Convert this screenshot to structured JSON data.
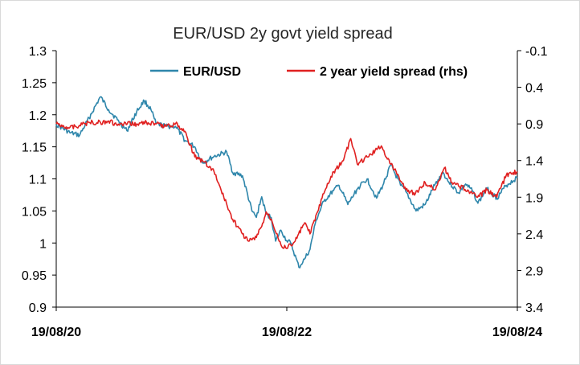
{
  "chart_data": {
    "type": "line",
    "title": "EUR/USD 2y govt yield spread",
    "x_tick_labels": [
      "19/08/20",
      "19/08/22",
      "19/08/24"
    ],
    "x_range": [
      "2020-08-19",
      "2024-08-19"
    ],
    "y_left": {
      "range": [
        0.9,
        1.3
      ],
      "ticks": [
        1.3,
        1.25,
        1.2,
        1.15,
        1.1,
        1.05,
        1,
        0.95,
        0.9
      ],
      "tick_labels": [
        "1.3",
        "1.25",
        "1.2",
        "1.15",
        "1.1",
        "1.05",
        "1",
        "0.95",
        "0.9"
      ]
    },
    "y_right": {
      "range": [
        -0.1,
        3.4
      ],
      "inverted": true,
      "ticks": [
        -0.1,
        0.4,
        0.9,
        1.4,
        1.9,
        2.4,
        2.9,
        3.4
      ],
      "tick_labels": [
        "-0.1",
        "0.4",
        "0.9",
        "1.4",
        "1.9",
        "2.4",
        "2.9",
        "3.4"
      ]
    },
    "grid": false,
    "legend_position": "top",
    "series": [
      {
        "name": "EUR/USD",
        "axis": "left",
        "color": "#2E86AB",
        "points": [
          [
            "2020-08-19",
            1.185
          ],
          [
            "2020-10-01",
            1.172
          ],
          [
            "2020-11-01",
            1.168
          ],
          [
            "2020-12-01",
            1.195
          ],
          [
            "2021-01-06",
            1.228
          ],
          [
            "2021-02-01",
            1.208
          ],
          [
            "2021-03-01",
            1.192
          ],
          [
            "2021-03-31",
            1.175
          ],
          [
            "2021-05-01",
            1.205
          ],
          [
            "2021-05-25",
            1.222
          ],
          [
            "2021-06-15",
            1.208
          ],
          [
            "2021-07-01",
            1.186
          ],
          [
            "2021-08-01",
            1.182
          ],
          [
            "2021-09-01",
            1.182
          ],
          [
            "2021-10-01",
            1.16
          ],
          [
            "2021-11-01",
            1.15
          ],
          [
            "2021-11-25",
            1.125
          ],
          [
            "2022-01-01",
            1.135
          ],
          [
            "2022-02-10",
            1.142
          ],
          [
            "2022-03-01",
            1.11
          ],
          [
            "2022-04-01",
            1.105
          ],
          [
            "2022-05-01",
            1.05
          ],
          [
            "2022-05-15",
            1.04
          ],
          [
            "2022-06-01",
            1.072
          ],
          [
            "2022-06-15",
            1.045
          ],
          [
            "2022-07-01",
            1.04
          ],
          [
            "2022-07-15",
            1.003
          ],
          [
            "2022-08-01",
            1.02
          ],
          [
            "2022-08-19",
            1.004
          ],
          [
            "2022-09-01",
            1.0
          ],
          [
            "2022-09-27",
            0.962
          ],
          [
            "2022-10-15",
            0.975
          ],
          [
            "2022-11-01",
            0.99
          ],
          [
            "2022-11-20",
            1.035
          ],
          [
            "2022-12-15",
            1.065
          ],
          [
            "2023-01-15",
            1.082
          ],
          [
            "2023-02-01",
            1.09
          ],
          [
            "2023-03-01",
            1.06
          ],
          [
            "2023-04-01",
            1.085
          ],
          [
            "2023-05-01",
            1.1
          ],
          [
            "2023-05-31",
            1.07
          ],
          [
            "2023-06-20",
            1.09
          ],
          [
            "2023-07-15",
            1.122
          ],
          [
            "2023-08-15",
            1.09
          ],
          [
            "2023-09-01",
            1.08
          ],
          [
            "2023-10-03",
            1.05
          ],
          [
            "2023-11-01",
            1.06
          ],
          [
            "2023-12-01",
            1.09
          ],
          [
            "2023-12-28",
            1.11
          ],
          [
            "2024-01-15",
            1.095
          ],
          [
            "2024-02-15",
            1.078
          ],
          [
            "2024-03-08",
            1.092
          ],
          [
            "2024-04-01",
            1.08
          ],
          [
            "2024-04-16",
            1.062
          ],
          [
            "2024-05-15",
            1.085
          ],
          [
            "2024-06-15",
            1.07
          ],
          [
            "2024-07-15",
            1.09
          ],
          [
            "2024-08-19",
            1.102
          ]
        ]
      },
      {
        "name": "2 year yield spread (rhs)",
        "axis": "right",
        "color": "#E02020",
        "points": [
          [
            "2020-08-19",
            0.9
          ],
          [
            "2020-10-01",
            0.95
          ],
          [
            "2020-11-01",
            0.92
          ],
          [
            "2020-12-01",
            0.88
          ],
          [
            "2021-01-06",
            0.88
          ],
          [
            "2021-02-01",
            0.86
          ],
          [
            "2021-03-01",
            0.92
          ],
          [
            "2021-04-01",
            0.9
          ],
          [
            "2021-05-01",
            0.9
          ],
          [
            "2021-06-01",
            0.88
          ],
          [
            "2021-07-01",
            0.9
          ],
          [
            "2021-08-01",
            0.93
          ],
          [
            "2021-09-01",
            0.9
          ],
          [
            "2021-10-01",
            1.0
          ],
          [
            "2021-11-01",
            1.35
          ],
          [
            "2021-12-01",
            1.42
          ],
          [
            "2022-01-01",
            1.55
          ],
          [
            "2022-02-01",
            1.9
          ],
          [
            "2022-03-01",
            2.2
          ],
          [
            "2022-04-01",
            2.4
          ],
          [
            "2022-04-20",
            2.5
          ],
          [
            "2022-05-15",
            2.45
          ],
          [
            "2022-06-01",
            2.3
          ],
          [
            "2022-06-15",
            2.1
          ],
          [
            "2022-07-01",
            2.2
          ],
          [
            "2022-07-20",
            2.4
          ],
          [
            "2022-08-01",
            2.55
          ],
          [
            "2022-08-19",
            2.6
          ],
          [
            "2022-09-15",
            2.5
          ],
          [
            "2022-10-15",
            2.25
          ],
          [
            "2022-11-01",
            2.4
          ],
          [
            "2022-11-25",
            2.1
          ],
          [
            "2022-12-15",
            1.85
          ],
          [
            "2023-01-15",
            1.55
          ],
          [
            "2023-02-15",
            1.4
          ],
          [
            "2023-03-10",
            1.1
          ],
          [
            "2023-03-31",
            1.45
          ],
          [
            "2023-05-01",
            1.35
          ],
          [
            "2023-06-01",
            1.25
          ],
          [
            "2023-06-15",
            1.2
          ],
          [
            "2023-07-15",
            1.45
          ],
          [
            "2023-08-01",
            1.55
          ],
          [
            "2023-09-01",
            1.8
          ],
          [
            "2023-10-01",
            1.85
          ],
          [
            "2023-11-01",
            1.7
          ],
          [
            "2023-12-01",
            1.8
          ],
          [
            "2024-01-01",
            1.5
          ],
          [
            "2024-01-25",
            1.7
          ],
          [
            "2024-02-15",
            1.75
          ],
          [
            "2024-03-15",
            1.8
          ],
          [
            "2024-04-15",
            1.9
          ],
          [
            "2024-05-15",
            1.8
          ],
          [
            "2024-06-15",
            1.9
          ],
          [
            "2024-07-15",
            1.6
          ],
          [
            "2024-08-19",
            1.55
          ]
        ]
      }
    ]
  }
}
